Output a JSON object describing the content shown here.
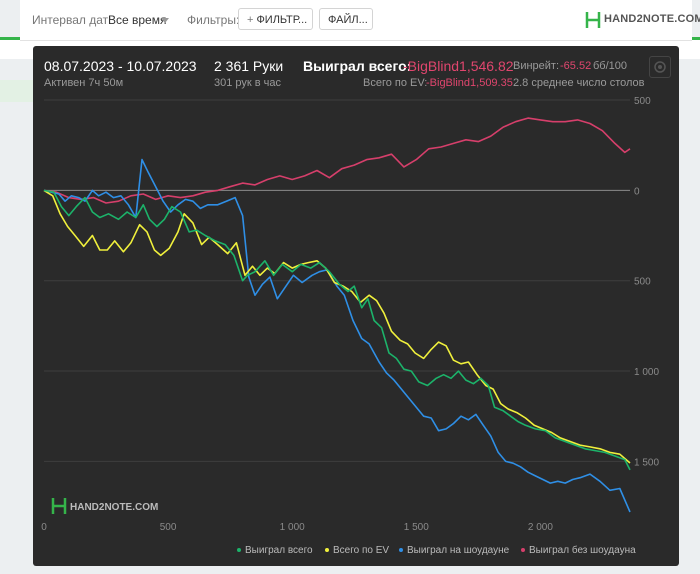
{
  "toolbar": {
    "date_interval_label": "Интервал дат:",
    "date_interval_value": "Все время",
    "filters_label": "Фильтры:",
    "filter_button_label": "ФИЛЬТР...",
    "file_button_label": "ФАЙЛ...",
    "brand": "HAND2NOTE.COM"
  },
  "stats": {
    "date_range": "08.07.2023 - 10.07.2023",
    "active": "Активен 7ч 50м",
    "hands": "2 361 Руки",
    "hands_per_hour": "301 рук в час",
    "won_total_label": "Выиграл всего:",
    "won_total_value": "-BigBlind1,546.82",
    "ev_label": "Всего по EV:",
    "ev_value": "-BigBlind1,509.35",
    "winrate_label": "Винрейт:",
    "winrate_value": "-65.52",
    "winrate_per": "бб/100",
    "avg_tables": "2.8 среднее число столов"
  },
  "watermark": "HAND2NOTE.COM",
  "colors": {
    "won_total": "#1cb36a",
    "ev": "#f0f03c",
    "showdown": "#2f8fe6",
    "non_showdown": "#d63f6b",
    "negative_value": "#e0466e"
  },
  "chart_data": {
    "type": "line",
    "xlim": [
      0,
      2361
    ],
    "ylim": [
      -1780,
      500
    ],
    "y_inverted_labels": true,
    "x_ticks": [
      0,
      500,
      1000,
      1500,
      2000
    ],
    "x_tick_labels": [
      "0",
      "500",
      "1 000",
      "1 500",
      "2 000"
    ],
    "y_ticks": [
      500,
      0,
      -500,
      -1000,
      -1500
    ],
    "y_tick_labels": [
      "500",
      "0",
      "500",
      "1 000",
      "1 500"
    ],
    "grid": true,
    "legend_position": "bottom-right",
    "series": [
      {
        "name": "Выиграл всего",
        "color": "#1cb36a",
        "points": [
          [
            0,
            0
          ],
          [
            40,
            -10
          ],
          [
            70,
            -90
          ],
          [
            100,
            -140
          ],
          [
            130,
            -90
          ],
          [
            165,
            -40
          ],
          [
            195,
            -120
          ],
          [
            225,
            -150
          ],
          [
            260,
            -130
          ],
          [
            300,
            -160
          ],
          [
            335,
            -120
          ],
          [
            370,
            -150
          ],
          [
            400,
            -80
          ],
          [
            425,
            -160
          ],
          [
            455,
            -200
          ],
          [
            485,
            -160
          ],
          [
            515,
            -90
          ],
          [
            550,
            -120
          ],
          [
            585,
            -230
          ],
          [
            615,
            -220
          ],
          [
            650,
            -250
          ],
          [
            690,
            -280
          ],
          [
            730,
            -300
          ],
          [
            765,
            -360
          ],
          [
            800,
            -500
          ],
          [
            820,
            -470
          ],
          [
            850,
            -450
          ],
          [
            890,
            -390
          ],
          [
            925,
            -470
          ],
          [
            960,
            -410
          ],
          [
            1000,
            -450
          ],
          [
            1035,
            -410
          ],
          [
            1075,
            -430
          ],
          [
            1110,
            -400
          ],
          [
            1150,
            -450
          ],
          [
            1190,
            -520
          ],
          [
            1225,
            -560
          ],
          [
            1250,
            -530
          ],
          [
            1280,
            -650
          ],
          [
            1305,
            -600
          ],
          [
            1330,
            -720
          ],
          [
            1360,
            -760
          ],
          [
            1390,
            -900
          ],
          [
            1420,
            -930
          ],
          [
            1450,
            -990
          ],
          [
            1480,
            -1000
          ],
          [
            1510,
            -1060
          ],
          [
            1545,
            -1080
          ],
          [
            1580,
            -1040
          ],
          [
            1610,
            -1020
          ],
          [
            1640,
            -1040
          ],
          [
            1670,
            -1000
          ],
          [
            1700,
            -1050
          ],
          [
            1730,
            -1070
          ],
          [
            1760,
            -1040
          ],
          [
            1790,
            -1080
          ],
          [
            1815,
            -1200
          ],
          [
            1850,
            -1220
          ],
          [
            1880,
            -1250
          ],
          [
            1910,
            -1280
          ],
          [
            1940,
            -1300
          ],
          [
            1980,
            -1320
          ],
          [
            2020,
            -1330
          ],
          [
            2060,
            -1370
          ],
          [
            2100,
            -1390
          ],
          [
            2140,
            -1410
          ],
          [
            2180,
            -1430
          ],
          [
            2220,
            -1440
          ],
          [
            2260,
            -1450
          ],
          [
            2300,
            -1470
          ],
          [
            2340,
            -1490
          ],
          [
            2361,
            -1547
          ]
        ]
      },
      {
        "name": "Всего по EV",
        "color": "#f0f03c",
        "points": [
          [
            0,
            0
          ],
          [
            35,
            -30
          ],
          [
            65,
            -130
          ],
          [
            95,
            -200
          ],
          [
            125,
            -250
          ],
          [
            160,
            -310
          ],
          [
            195,
            -250
          ],
          [
            225,
            -330
          ],
          [
            255,
            -330
          ],
          [
            285,
            -280
          ],
          [
            320,
            -340
          ],
          [
            350,
            -290
          ],
          [
            385,
            -190
          ],
          [
            415,
            -230
          ],
          [
            445,
            -330
          ],
          [
            470,
            -360
          ],
          [
            505,
            -320
          ],
          [
            540,
            -230
          ],
          [
            565,
            -130
          ],
          [
            600,
            -180
          ],
          [
            635,
            -300
          ],
          [
            665,
            -260
          ],
          [
            700,
            -300
          ],
          [
            740,
            -350
          ],
          [
            775,
            -290
          ],
          [
            810,
            -470
          ],
          [
            840,
            -420
          ],
          [
            870,
            -470
          ],
          [
            900,
            -430
          ],
          [
            930,
            -460
          ],
          [
            965,
            -400
          ],
          [
            1000,
            -430
          ],
          [
            1035,
            -410
          ],
          [
            1065,
            -400
          ],
          [
            1100,
            -390
          ],
          [
            1135,
            -430
          ],
          [
            1170,
            -510
          ],
          [
            1205,
            -530
          ],
          [
            1240,
            -560
          ],
          [
            1275,
            -620
          ],
          [
            1310,
            -580
          ],
          [
            1340,
            -610
          ],
          [
            1370,
            -680
          ],
          [
            1400,
            -780
          ],
          [
            1435,
            -830
          ],
          [
            1465,
            -850
          ],
          [
            1495,
            -900
          ],
          [
            1530,
            -930
          ],
          [
            1560,
            -880
          ],
          [
            1590,
            -840
          ],
          [
            1620,
            -860
          ],
          [
            1650,
            -940
          ],
          [
            1680,
            -960
          ],
          [
            1710,
            -950
          ],
          [
            1745,
            -1020
          ],
          [
            1780,
            -1080
          ],
          [
            1810,
            -1100
          ],
          [
            1840,
            -1180
          ],
          [
            1870,
            -1210
          ],
          [
            1905,
            -1230
          ],
          [
            1940,
            -1260
          ],
          [
            1975,
            -1300
          ],
          [
            2010,
            -1320
          ],
          [
            2045,
            -1340
          ],
          [
            2080,
            -1370
          ],
          [
            2120,
            -1390
          ],
          [
            2160,
            -1410
          ],
          [
            2200,
            -1420
          ],
          [
            2240,
            -1430
          ],
          [
            2280,
            -1450
          ],
          [
            2320,
            -1460
          ],
          [
            2361,
            -1509
          ]
        ]
      },
      {
        "name": "Выиграл на шоудауне",
        "color": "#2f8fe6",
        "points": [
          [
            0,
            0
          ],
          [
            30,
            -10
          ],
          [
            60,
            -20
          ],
          [
            85,
            -60
          ],
          [
            110,
            -30
          ],
          [
            140,
            -40
          ],
          [
            165,
            -60
          ],
          [
            195,
            0
          ],
          [
            220,
            -30
          ],
          [
            250,
            -10
          ],
          [
            280,
            -40
          ],
          [
            310,
            -30
          ],
          [
            340,
            -80
          ],
          [
            370,
            -150
          ],
          [
            395,
            170
          ],
          [
            420,
            100
          ],
          [
            450,
            20
          ],
          [
            480,
            -60
          ],
          [
            510,
            -120
          ],
          [
            540,
            -80
          ],
          [
            570,
            -50
          ],
          [
            600,
            -60
          ],
          [
            630,
            -100
          ],
          [
            660,
            -80
          ],
          [
            700,
            -80
          ],
          [
            735,
            -60
          ],
          [
            770,
            -40
          ],
          [
            800,
            -140
          ],
          [
            825,
            -480
          ],
          [
            850,
            -580
          ],
          [
            880,
            -520
          ],
          [
            910,
            -480
          ],
          [
            940,
            -600
          ],
          [
            975,
            -530
          ],
          [
            1005,
            -470
          ],
          [
            1040,
            -510
          ],
          [
            1080,
            -470
          ],
          [
            1110,
            -450
          ],
          [
            1140,
            -440
          ],
          [
            1180,
            -530
          ],
          [
            1210,
            -580
          ],
          [
            1245,
            -720
          ],
          [
            1280,
            -820
          ],
          [
            1310,
            -850
          ],
          [
            1350,
            -950
          ],
          [
            1380,
            -1010
          ],
          [
            1410,
            -1050
          ],
          [
            1440,
            -1100
          ],
          [
            1470,
            -1150
          ],
          [
            1500,
            -1200
          ],
          [
            1530,
            -1250
          ],
          [
            1560,
            -1260
          ],
          [
            1590,
            -1330
          ],
          [
            1620,
            -1320
          ],
          [
            1650,
            -1290
          ],
          [
            1680,
            -1250
          ],
          [
            1710,
            -1270
          ],
          [
            1740,
            -1240
          ],
          [
            1770,
            -1300
          ],
          [
            1800,
            -1360
          ],
          [
            1830,
            -1450
          ],
          [
            1860,
            -1500
          ],
          [
            1890,
            -1510
          ],
          [
            1920,
            -1530
          ],
          [
            1950,
            -1560
          ],
          [
            1980,
            -1580
          ],
          [
            2010,
            -1600
          ],
          [
            2040,
            -1620
          ],
          [
            2070,
            -1610
          ],
          [
            2100,
            -1620
          ],
          [
            2130,
            -1600
          ],
          [
            2160,
            -1590
          ],
          [
            2200,
            -1570
          ],
          [
            2240,
            -1610
          ],
          [
            2280,
            -1660
          ],
          [
            2320,
            -1650
          ],
          [
            2361,
            -1780
          ]
        ]
      },
      {
        "name": "Выиграл без шоудауна",
        "color": "#d63f6b",
        "points": [
          [
            0,
            0
          ],
          [
            50,
            -10
          ],
          [
            100,
            -40
          ],
          [
            150,
            -50
          ],
          [
            200,
            -40
          ],
          [
            250,
            -70
          ],
          [
            300,
            -60
          ],
          [
            350,
            -30
          ],
          [
            400,
            -20
          ],
          [
            450,
            -50
          ],
          [
            500,
            -30
          ],
          [
            550,
            -40
          ],
          [
            600,
            -30
          ],
          [
            650,
            -10
          ],
          [
            700,
            0
          ],
          [
            750,
            20
          ],
          [
            800,
            40
          ],
          [
            850,
            30
          ],
          [
            900,
            60
          ],
          [
            950,
            80
          ],
          [
            1000,
            60
          ],
          [
            1050,
            80
          ],
          [
            1100,
            110
          ],
          [
            1150,
            70
          ],
          [
            1200,
            120
          ],
          [
            1250,
            140
          ],
          [
            1300,
            170
          ],
          [
            1350,
            180
          ],
          [
            1400,
            200
          ],
          [
            1450,
            130
          ],
          [
            1500,
            170
          ],
          [
            1550,
            230
          ],
          [
            1600,
            240
          ],
          [
            1650,
            260
          ],
          [
            1700,
            280
          ],
          [
            1750,
            270
          ],
          [
            1800,
            300
          ],
          [
            1850,
            350
          ],
          [
            1900,
            380
          ],
          [
            1950,
            400
          ],
          [
            2000,
            390
          ],
          [
            2050,
            380
          ],
          [
            2100,
            380
          ],
          [
            2150,
            390
          ],
          [
            2200,
            370
          ],
          [
            2250,
            330
          ],
          [
            2300,
            260
          ],
          [
            2340,
            210
          ],
          [
            2361,
            230
          ]
        ]
      }
    ]
  }
}
